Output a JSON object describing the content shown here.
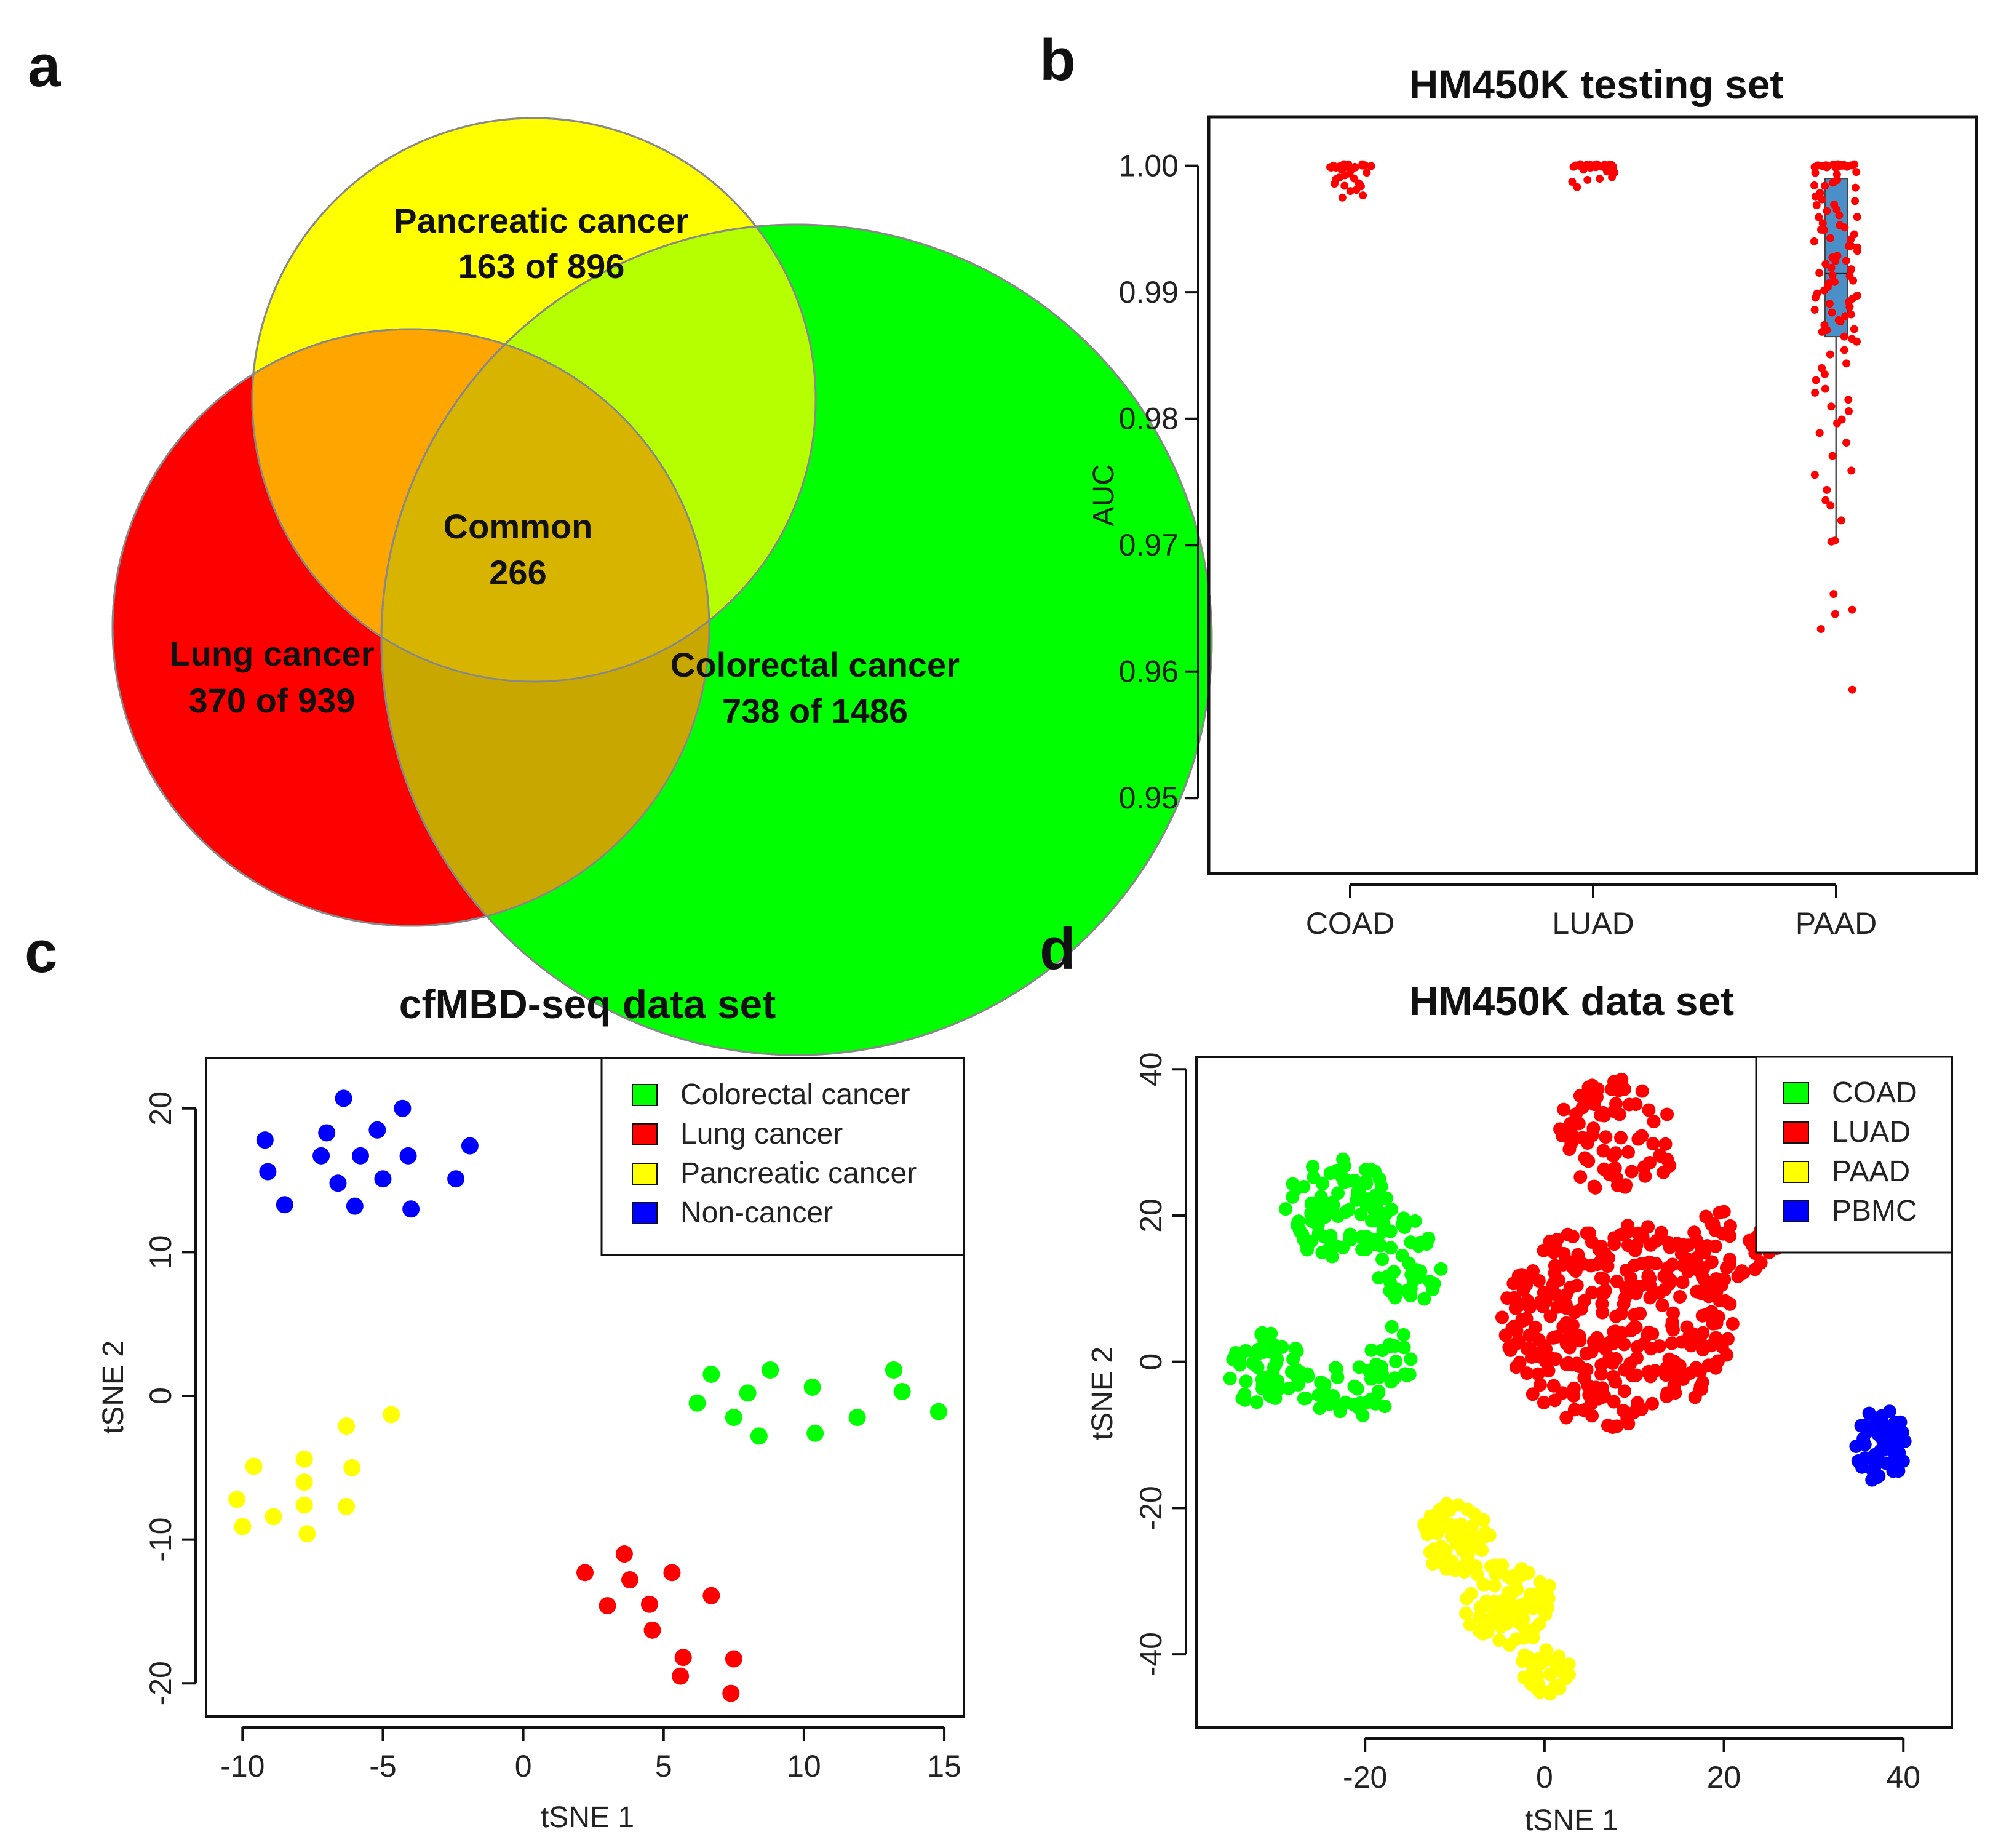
{
  "panels": {
    "a": {
      "letter": "a",
      "chart_data": {
        "type": "venn",
        "sets": [
          {
            "name": "Pancreatic cancer",
            "label": "163 of 896",
            "color": "#ffff00"
          },
          {
            "name": "Lung cancer",
            "label": "370 of 939",
            "color": "#ff0000"
          },
          {
            "name": "Colorectal cancer",
            "label": "738 of 1486",
            "color": "#00ff00"
          }
        ],
        "common": {
          "name": "Common",
          "label": "266"
        }
      }
    },
    "b": {
      "letter": "b",
      "chart_data": {
        "type": "scatter",
        "title": "HM450K testing set",
        "xlabel": "",
        "ylabel": "AUC",
        "categories": [
          "COAD",
          "LUAD",
          "PAAD"
        ],
        "ylim": [
          0.945,
          1.003
        ],
        "yticks": [
          "0.95",
          "0.96",
          "0.97",
          "0.98",
          "0.99",
          "1.00"
        ],
        "point_color": "#ff0000",
        "box_color": "#4a8fc7",
        "box": {
          "category": "PAAD",
          "q1": 0.9865,
          "median": 0.9915,
          "q3": 0.999,
          "whisker_low": 0.9705,
          "whisker_high": 1.0
        },
        "series": [
          {
            "name": "COAD",
            "values": [
              1.0,
              1.0,
              1.0,
              1.0,
              1.0,
              1.0,
              1.0,
              1.0,
              1.0,
              1.0,
              1.0,
              1.0,
              1.0,
              1.0,
              1.0,
              1.0,
              1.0,
              1.0,
              1.0,
              1.0,
              0.9998,
              0.9997,
              0.9996,
              0.9995,
              0.9994,
              0.9993,
              0.9992,
              0.999,
              0.9989,
              0.9988,
              0.9987,
              0.9986,
              0.9985,
              0.9984,
              0.9982,
              0.998,
              0.9978,
              0.9976
            ]
          },
          {
            "name": "LUAD",
            "values": [
              1.0,
              1.0,
              1.0,
              1.0,
              1.0,
              1.0,
              1.0,
              1.0,
              1.0,
              1.0,
              1.0,
              1.0,
              1.0,
              1.0,
              1.0,
              1.0,
              1.0,
              1.0,
              1.0,
              1.0,
              1.0,
              1.0,
              0.9998,
              0.9997,
              0.9996,
              0.9995,
              0.9994,
              0.9992,
              0.999,
              0.9988,
              0.9986,
              0.9984
            ]
          },
          {
            "name": "PAAD",
            "values": [
              1.0,
              1.0,
              1.0,
              1.0,
              1.0,
              1.0,
              1.0,
              1.0,
              1.0,
              1.0,
              1.0,
              1.0,
              1.0,
              1.0,
              1.0,
              1.0,
              1.0,
              1.0,
              0.9998,
              0.9996,
              0.9994,
              0.9992,
              0.999,
              0.9988,
              0.9986,
              0.9984,
              0.9982,
              0.998,
              0.9978,
              0.9976,
              0.9974,
              0.9972,
              0.997,
              0.9968,
              0.9966,
              0.9964,
              0.9962,
              0.996,
              0.9958,
              0.9956,
              0.9954,
              0.9952,
              0.995,
              0.9948,
              0.9946,
              0.9944,
              0.9942,
              0.994,
              0.9938,
              0.9936,
              0.9934,
              0.9932,
              0.993,
              0.9928,
              0.9926,
              0.9924,
              0.9922,
              0.992,
              0.9918,
              0.9916,
              0.9914,
              0.9912,
              0.991,
              0.9908,
              0.9906,
              0.9904,
              0.9902,
              0.99,
              0.9898,
              0.9896,
              0.9894,
              0.9892,
              0.989,
              0.9888,
              0.9886,
              0.9884,
              0.9882,
              0.988,
              0.9878,
              0.9876,
              0.9874,
              0.9872,
              0.987,
              0.9868,
              0.9866,
              0.9864,
              0.986,
              0.9855,
              0.985,
              0.9845,
              0.984,
              0.9835,
              0.983,
              0.9825,
              0.982,
              0.9815,
              0.981,
              0.9805,
              0.98,
              0.9795,
              0.979,
              0.978,
              0.977,
              0.976,
              0.9755,
              0.9745,
              0.9735,
              0.973,
              0.972,
              0.9705,
              0.9702,
              0.966,
              0.965,
              0.9645,
              0.9635,
              0.9585
            ]
          }
        ]
      }
    },
    "c": {
      "letter": "c",
      "chart_data": {
        "type": "scatter",
        "title": "cfMBD-seq data set",
        "xlabel": "tSNE 1",
        "ylabel": "tSNE 2",
        "xlim": [
          -11.3,
          15.7
        ],
        "ylim": [
          -22.3,
          23.5
        ],
        "xticks": [
          "-10",
          "-5",
          "0",
          "5",
          "10",
          "15"
        ],
        "yticks": [
          "-20",
          "-10",
          "0",
          "10",
          "20"
        ],
        "legend_position": "top-right",
        "series": [
          {
            "name": "Colorectal cancer",
            "color": "#00ff00",
            "x": [
              6.2,
              6.7,
              8.0,
              7.5,
              8.8,
              8.4,
              10.3,
              10.4,
              11.9,
              13.2,
              13.5,
              14.8
            ],
            "y": [
              -0.5,
              1.5,
              0.2,
              -1.5,
              1.8,
              -2.8,
              0.6,
              -2.6,
              -1.5,
              1.8,
              0.3,
              -1.1
            ]
          },
          {
            "name": "Lung cancer",
            "color": "#ff0000",
            "x": [
              2.2,
              3.0,
              3.6,
              3.8,
              4.5,
              4.6,
              5.3,
              5.6,
              5.7,
              6.7,
              7.4,
              7.5
            ],
            "y": [
              -12.3,
              -14.6,
              -11.0,
              -12.8,
              -14.5,
              -16.3,
              -12.3,
              -19.5,
              -18.2,
              -13.9,
              -20.7,
              -18.3
            ]
          },
          {
            "name": "Pancreatic cancer",
            "color": "#ffff00",
            "x": [
              -10.2,
              -10.0,
              -9.6,
              -8.9,
              -7.8,
              -7.8,
              -7.8,
              -7.7,
              -6.3,
              -6.3,
              -6.1,
              -4.7
            ],
            "y": [
              -7.2,
              -9.1,
              -4.9,
              -8.4,
              -6.0,
              -4.4,
              -7.6,
              -9.6,
              -2.1,
              -7.7,
              -5.0,
              -1.3
            ]
          },
          {
            "name": "Non-cancer",
            "color": "#0000ff",
            "x": [
              -9.2,
              -9.1,
              -8.5,
              -7.2,
              -7.0,
              -6.6,
              -6.4,
              -6.0,
              -5.8,
              -5.2,
              -5.0,
              -4.3,
              -4.1,
              -4.0,
              -2.4,
              -1.9
            ],
            "y": [
              17.8,
              15.6,
              13.3,
              16.7,
              18.3,
              14.8,
              20.7,
              13.2,
              16.7,
              18.5,
              15.1,
              20.0,
              16.7,
              13.0,
              15.1,
              17.4
            ]
          }
        ]
      }
    },
    "d": {
      "letter": "d",
      "chart_data": {
        "type": "scatter",
        "title": "HM450K data set",
        "xlabel": "tSNE 1",
        "ylabel": "tSNE 2",
        "xlim": [
          -38.8,
          45.4
        ],
        "ylim": [
          -50.0,
          41.7
        ],
        "xticks": [
          "-20",
          "0",
          "20",
          "40"
        ],
        "yticks": [
          "-40",
          "-20",
          "0",
          "20",
          "40"
        ],
        "legend_position": "top-right",
        "series": [
          {
            "name": "COAD",
            "color": "#00ff00",
            "clusters": [
              {
                "cx": -23,
                "cy": 21,
                "rx": 6,
                "ry": 7,
                "n": 90
              },
              {
                "cx": -15,
                "cy": 14,
                "rx": 4,
                "ry": 6,
                "n": 40
              },
              {
                "cx": -31,
                "cy": -1,
                "rx": 4.5,
                "ry": 5,
                "n": 55
              },
              {
                "cx": -22,
                "cy": -4,
                "rx": 6,
                "ry": 3.5,
                "n": 40
              },
              {
                "cx": -17,
                "cy": 1,
                "rx": 2.5,
                "ry": 5,
                "n": 18
              }
            ]
          },
          {
            "name": "LUAD",
            "color": "#ff0000",
            "clusters": [
              {
                "cx": 8,
                "cy": 31,
                "rx": 7,
                "ry": 8,
                "n": 80
              },
              {
                "cx": 8,
                "cy": 5,
                "rx": 13,
                "ry": 14,
                "n": 330
              },
              {
                "cx": 21,
                "cy": 16,
                "rx": 5,
                "ry": 5,
                "n": 35
              }
            ]
          },
          {
            "name": "PAAD",
            "color": "#ffff00",
            "clusters": [
              {
                "cx": -10,
                "cy": -24,
                "rx": 4,
                "ry": 5,
                "n": 70
              },
              {
                "cx": -4,
                "cy": -33,
                "rx": 5,
                "ry": 6,
                "n": 90
              },
              {
                "cx": 0,
                "cy": -42,
                "rx": 3,
                "ry": 4,
                "n": 30
              }
            ]
          },
          {
            "name": "PBMC",
            "color": "#0000ff",
            "clusters": [
              {
                "cx": 37.5,
                "cy": -11.5,
                "rx": 3,
                "ry": 5,
                "n": 60
              }
            ]
          }
        ]
      }
    }
  }
}
